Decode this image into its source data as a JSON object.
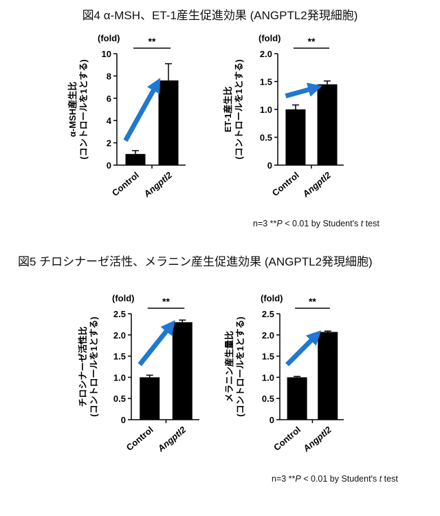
{
  "figure4": {
    "title": "図4 α-MSH、ET-1産生促進効果 (ANGPTL2発現細胞)",
    "note": {
      "prefix": "n=3   **",
      "p": "P",
      "mid": " < 0.01 by Student's ",
      "t": "t",
      "suffix": " test"
    }
  },
  "figure5": {
    "title": "図5 チロシナーゼ活性、メラニン産生促進効果 (ANGPTL2発現細胞)",
    "note": {
      "prefix": "n=3   **",
      "p": "P",
      "mid": " < 0.01 by Student's ",
      "t": "t",
      "suffix": " test"
    }
  },
  "chart_data": [
    {
      "type": "bar",
      "id": "msh",
      "unit": "(fold)",
      "ylabel_lines": [
        "α-MSH産生比",
        "(コントロールを1とする)"
      ],
      "categories": [
        "Control",
        "Angptl2"
      ],
      "category_italic": [
        false,
        true
      ],
      "values": [
        1.0,
        7.6
      ],
      "errors": [
        0.3,
        1.5
      ],
      "ylim": [
        0,
        10
      ],
      "yticks": [
        0,
        2,
        4,
        6,
        8,
        10
      ],
      "tick_labels": [
        "0",
        "2",
        "4",
        "6",
        "8",
        "10"
      ],
      "significance": "**",
      "arrow_color": "#1f78d1",
      "bar_color": "#000000"
    },
    {
      "type": "bar",
      "id": "et1",
      "unit": "(fold)",
      "ylabel_lines": [
        "ET-1産生比",
        "(コントロールを1とする)"
      ],
      "categories": [
        "Control",
        "Angptl2"
      ],
      "category_italic": [
        false,
        true
      ],
      "values": [
        1.0,
        1.45
      ],
      "errors": [
        0.08,
        0.06
      ],
      "ylim": [
        0,
        2.0
      ],
      "yticks": [
        0,
        0.5,
        1.0,
        1.5,
        2.0
      ],
      "tick_labels": [
        "0",
        "0.5",
        "1.0",
        "1.5",
        "2.0"
      ],
      "significance": "**",
      "arrow_color": "#1f78d1",
      "bar_color": "#000000"
    },
    {
      "type": "bar",
      "id": "tyr",
      "unit": "(fold)",
      "ylabel_lines": [
        "チロシナーゼ活性比",
        "(コントロールを1とする)"
      ],
      "categories": [
        "Control",
        "Angptl2"
      ],
      "category_italic": [
        false,
        true
      ],
      "values": [
        1.0,
        2.3
      ],
      "errors": [
        0.05,
        0.05
      ],
      "ylim": [
        0,
        2.5
      ],
      "yticks": [
        0,
        0.5,
        1.0,
        1.5,
        2.0,
        2.5
      ],
      "tick_labels": [
        "0",
        "0.5",
        "1.0",
        "1.5",
        "2.0",
        "2.5"
      ],
      "significance": "**",
      "arrow_color": "#1f78d1",
      "bar_color": "#000000"
    },
    {
      "type": "bar",
      "id": "mel",
      "unit": "(fold)",
      "ylabel_lines": [
        "メラニン産生量比",
        "(コントロールを1とする)"
      ],
      "categories": [
        "Control",
        "Angptl2"
      ],
      "category_italic": [
        false,
        true
      ],
      "values": [
        1.0,
        2.07
      ],
      "errors": [
        0.02,
        0.02
      ],
      "ylim": [
        0,
        2.5
      ],
      "yticks": [
        0,
        0.5,
        1.0,
        1.5,
        2.0,
        2.5
      ],
      "tick_labels": [
        "0",
        "0.5",
        "1.0",
        "1.5",
        "2.0",
        "2.5"
      ],
      "significance": "**",
      "arrow_color": "#1f78d1",
      "bar_color": "#000000"
    }
  ]
}
